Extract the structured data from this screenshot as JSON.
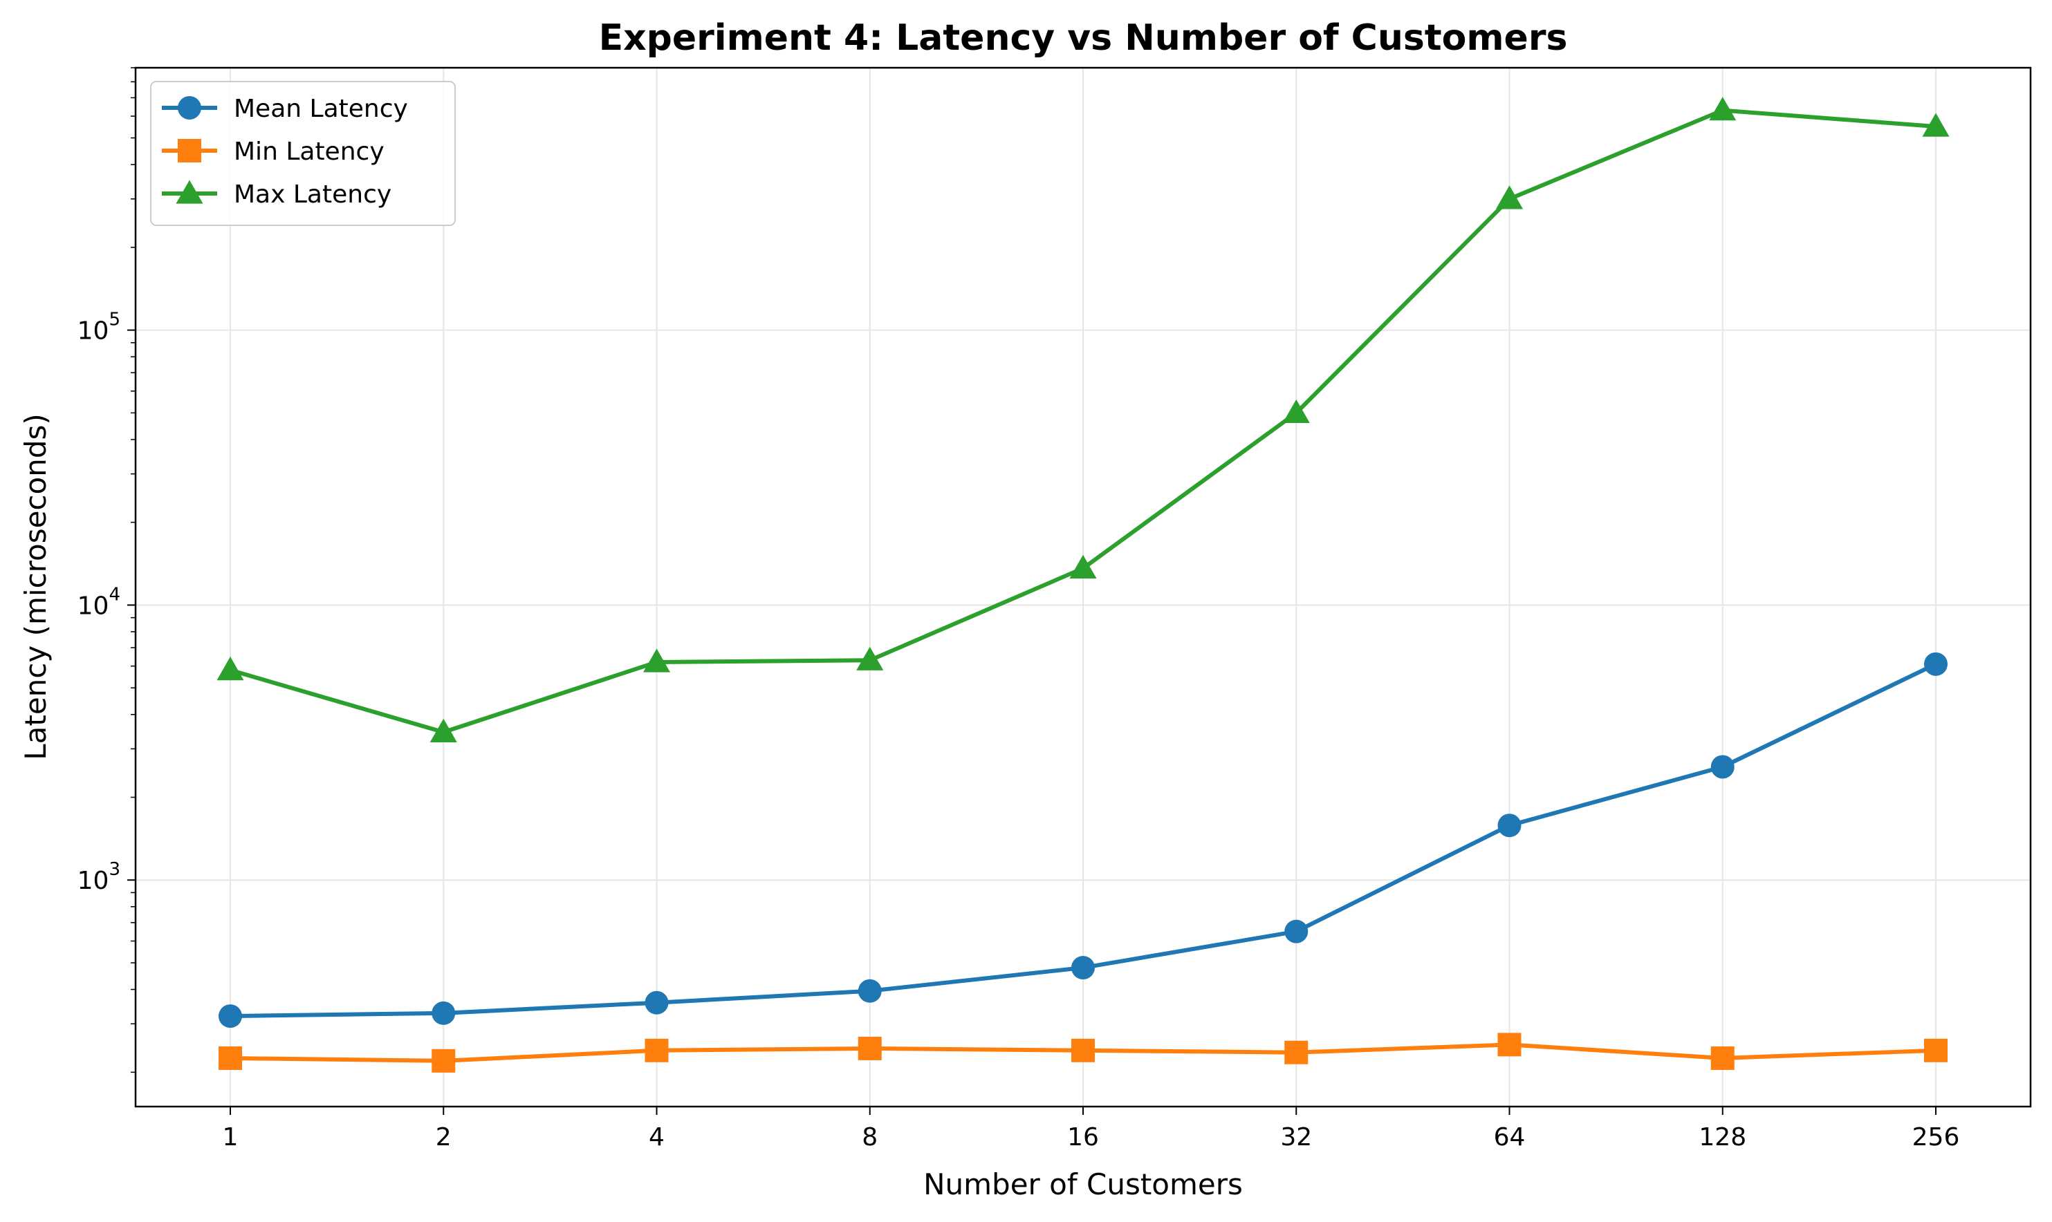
{
  "chart_data": {
    "type": "line",
    "title": "Experiment 4: Latency vs Number of Customers",
    "xlabel": "Number of Customers",
    "ylabel": "Latency (microseconds)",
    "x_scale": "log2",
    "y_scale": "log10",
    "categories": [
      "1",
      "2",
      "4",
      "8",
      "16",
      "32",
      "64",
      "128",
      "256"
    ],
    "x": [
      1,
      2,
      4,
      8,
      16,
      32,
      64,
      128,
      256
    ],
    "ylim": [
      150,
      900000
    ],
    "y_ticks": [
      {
        "value": 1000,
        "base": "10",
        "exp": "3"
      },
      {
        "value": 10000,
        "base": "10",
        "exp": "4"
      },
      {
        "value": 100000,
        "base": "10",
        "exp": "5"
      }
    ],
    "grid": true,
    "legend_position": "top-left",
    "series": [
      {
        "name": "Mean Latency",
        "color": "#1f77b4",
        "marker": "circle",
        "values": [
          320,
          328,
          358,
          395,
          480,
          650,
          1580,
          2580,
          6100
        ]
      },
      {
        "name": "Min Latency",
        "color": "#ff7f0e",
        "marker": "square",
        "values": [
          225,
          220,
          240,
          244,
          240,
          236,
          252,
          225,
          240
        ]
      },
      {
        "name": "Max Latency",
        "color": "#2ca02c",
        "marker": "triangle",
        "values": [
          5800,
          3450,
          6200,
          6300,
          13600,
          50000,
          300000,
          630000,
          550000
        ]
      }
    ]
  }
}
